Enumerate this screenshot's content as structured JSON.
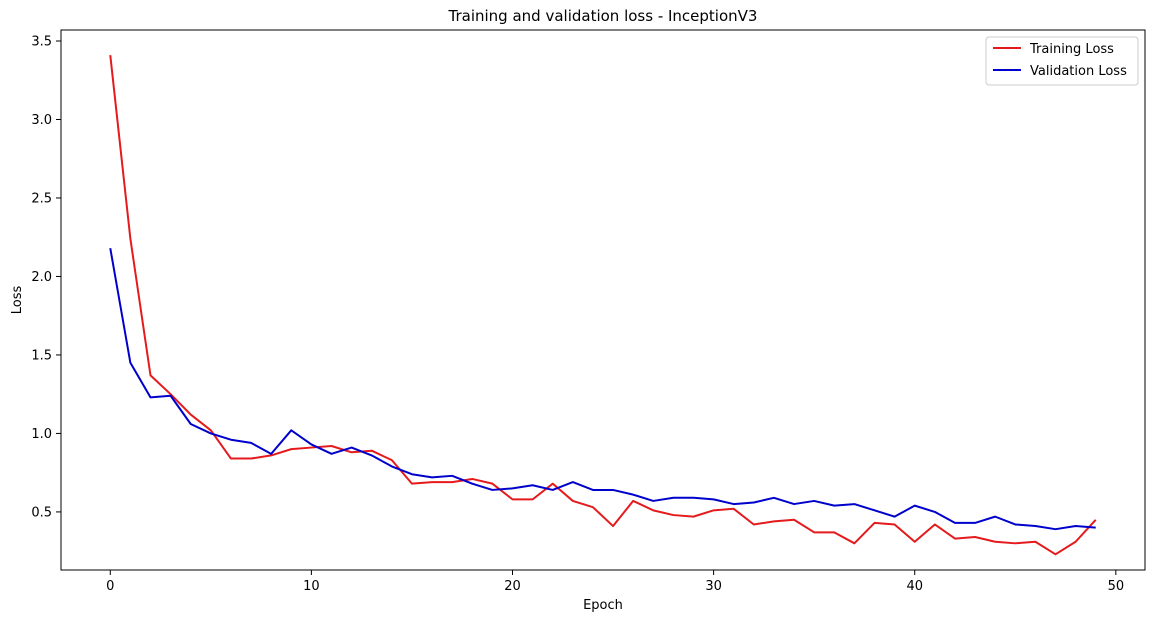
{
  "chart_data": {
    "type": "line",
    "title": "Training and validation loss - InceptionV3",
    "xlabel": "Epoch",
    "ylabel": "Loss",
    "xlim": [
      -2.45,
      51.45
    ],
    "ylim": [
      0.13,
      3.57
    ],
    "xticks": [
      0,
      10,
      20,
      30,
      40,
      50
    ],
    "yticks": [
      0.5,
      1.0,
      1.5,
      2.0,
      2.5,
      3.0,
      3.5
    ],
    "ytick_labels": [
      "0.5",
      "1.0",
      "1.5",
      "2.0",
      "2.5",
      "3.0",
      "3.5"
    ],
    "grid": false,
    "legend": "top-right",
    "x": [
      0,
      1,
      2,
      3,
      4,
      5,
      6,
      7,
      8,
      9,
      10,
      11,
      12,
      13,
      14,
      15,
      16,
      17,
      18,
      19,
      20,
      21,
      22,
      23,
      24,
      25,
      26,
      27,
      28,
      29,
      30,
      31,
      32,
      33,
      34,
      35,
      36,
      37,
      38,
      39,
      40,
      41,
      42,
      43,
      44,
      45,
      46,
      47,
      48,
      49
    ],
    "series": [
      {
        "name": "Training Loss",
        "color": "#e41a1c",
        "values": [
          3.41,
          2.24,
          1.37,
          1.25,
          1.12,
          1.02,
          0.84,
          0.84,
          0.86,
          0.9,
          0.91,
          0.92,
          0.88,
          0.89,
          0.83,
          0.68,
          0.69,
          0.69,
          0.71,
          0.68,
          0.58,
          0.58,
          0.68,
          0.57,
          0.53,
          0.41,
          0.57,
          0.51,
          0.48,
          0.47,
          0.51,
          0.52,
          0.42,
          0.44,
          0.45,
          0.37,
          0.37,
          0.3,
          0.43,
          0.42,
          0.31,
          0.42,
          0.33,
          0.34,
          0.31,
          0.3,
          0.31,
          0.23,
          0.31,
          0.45
        ]
      },
      {
        "name": "Validation Loss",
        "color": "#0000cc",
        "values": [
          2.18,
          1.45,
          1.23,
          1.24,
          1.06,
          1.0,
          0.96,
          0.94,
          0.87,
          1.02,
          0.93,
          0.87,
          0.91,
          0.86,
          0.79,
          0.74,
          0.72,
          0.73,
          0.68,
          0.64,
          0.65,
          0.67,
          0.64,
          0.69,
          0.64,
          0.64,
          0.61,
          0.57,
          0.59,
          0.59,
          0.58,
          0.55,
          0.56,
          0.59,
          0.55,
          0.57,
          0.54,
          0.55,
          0.51,
          0.47,
          0.54,
          0.5,
          0.43,
          0.43,
          0.47,
          0.42,
          0.41,
          0.39,
          0.41,
          0.4
        ]
      }
    ]
  }
}
